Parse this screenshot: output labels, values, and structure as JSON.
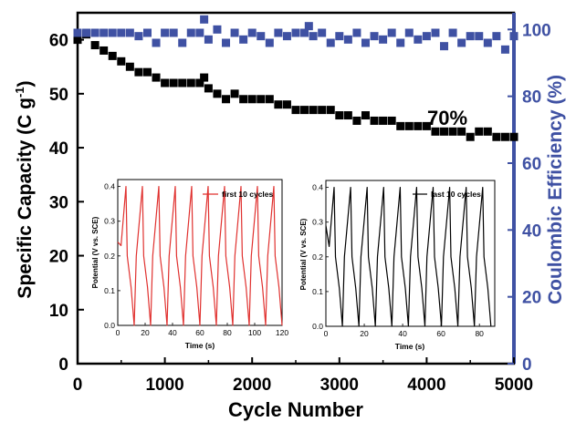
{
  "chart_data": [
    {
      "type": "scatter",
      "xlabel": "Cycle Number",
      "ylabel_left_main": "Specific Capacity (C g",
      "ylabel_left_sup": "-1",
      "ylabel_left_close": ")",
      "ylabel_right": "Coulombic Efficiency (%)",
      "xlim": [
        0,
        5000
      ],
      "ylim_left": [
        0,
        65
      ],
      "ylim_right": [
        0,
        105
      ],
      "x_ticks": [
        0,
        1000,
        2000,
        3000,
        4000,
        5000
      ],
      "y_left_ticks": [
        0,
        10,
        20,
        30,
        40,
        50,
        60
      ],
      "y_right_ticks": [
        0,
        20,
        40,
        60,
        80,
        100
      ],
      "annotation": "70%",
      "colors": {
        "capacity": "#000000",
        "efficiency": "#3f51a3",
        "right_axis": "#3f51a3"
      },
      "series": [
        {
          "axis": "left",
          "marker": "square",
          "x": [
            0,
            100,
            200,
            300,
            400,
            500,
            600,
            700,
            800,
            900,
            1000,
            1100,
            1200,
            1300,
            1400,
            1450,
            1500,
            1600,
            1700,
            1800,
            1900,
            2000,
            2100,
            2200,
            2300,
            2400,
            2500,
            2600,
            2700,
            2800,
            2900,
            3000,
            3100,
            3200,
            3300,
            3400,
            3500,
            3600,
            3700,
            3800,
            3900,
            4000,
            4100,
            4200,
            4300,
            4400,
            4500,
            4600,
            4700,
            4800,
            4900,
            5000
          ],
          "values": [
            60,
            61,
            59,
            58,
            57,
            56,
            55,
            54,
            54,
            53,
            52,
            52,
            52,
            52,
            52,
            53,
            51,
            50,
            49,
            50,
            49,
            49,
            49,
            49,
            48,
            48,
            47,
            47,
            47,
            47,
            47,
            46,
            46,
            45,
            46,
            45,
            45,
            45,
            44,
            44,
            44,
            44,
            43,
            43,
            43,
            43,
            42,
            43,
            43,
            42,
            42,
            42
          ]
        },
        {
          "axis": "right",
          "marker": "square",
          "x": [
            0,
            100,
            200,
            300,
            400,
            500,
            600,
            700,
            800,
            900,
            1000,
            1100,
            1200,
            1300,
            1400,
            1450,
            1500,
            1600,
            1700,
            1800,
            1900,
            2000,
            2100,
            2200,
            2300,
            2400,
            2500,
            2600,
            2650,
            2700,
            2800,
            2900,
            3000,
            3100,
            3200,
            3300,
            3400,
            3500,
            3600,
            3700,
            3800,
            3900,
            4000,
            4100,
            4200,
            4300,
            4400,
            4500,
            4600,
            4700,
            4800,
            4900,
            5000
          ],
          "values": [
            99,
            99,
            99,
            99,
            99,
            99,
            99,
            98,
            99,
            96,
            99,
            99,
            96,
            99,
            99,
            103,
            97,
            100,
            96,
            99,
            97,
            99,
            98,
            96,
            99,
            98,
            99,
            99,
            101,
            98,
            99,
            96,
            98,
            97,
            99,
            96,
            98,
            97,
            99,
            96,
            99,
            97,
            98,
            99,
            95,
            99,
            96,
            98,
            98,
            96,
            98,
            94,
            98
          ]
        }
      ]
    },
    {
      "type": "line",
      "legend": "first 10 cycles",
      "xlabel": "Time (s)",
      "ylabel": "Potential (V vs. SCE)",
      "xlim": [
        0,
        120
      ],
      "ylim": [
        0,
        0.42
      ],
      "x_ticks": [
        0,
        20,
        40,
        60,
        80,
        100,
        120
      ],
      "y_ticks": [
        "0.0",
        "0.1",
        "0.2",
        "0.3",
        "0.4"
      ],
      "color": "#e0312f",
      "cycles": 10,
      "cycle_period_s": 12,
      "first_cycle_start_potential": 0.24,
      "peak_potential": 0.4,
      "knee_potential": 0.2,
      "min_potential": 0.0
    },
    {
      "type": "line",
      "legend": "last 10 cycles",
      "xlabel": "Time (s)",
      "ylabel": "Potential (V vs. SCE)",
      "xlim": [
        0,
        88
      ],
      "ylim": [
        0,
        0.42
      ],
      "x_ticks": [
        0,
        20,
        40,
        60,
        80
      ],
      "y_ticks": [
        "0.0",
        "0.1",
        "0.2",
        "0.3",
        "0.4"
      ],
      "color": "#000000",
      "cycles": 10,
      "cycle_period_s": 8.6,
      "first_cycle_start_potential": 0.29,
      "peak_potential": 0.4,
      "knee_potential": 0.2,
      "min_potential": 0.0
    }
  ]
}
